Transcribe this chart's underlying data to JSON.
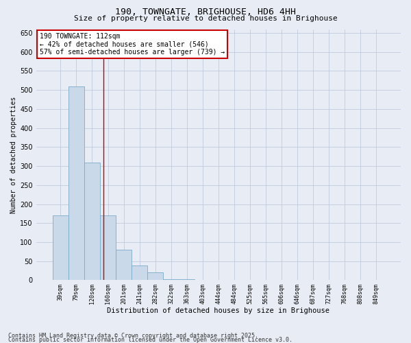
{
  "title1": "190, TOWNGATE, BRIGHOUSE, HD6 4HH",
  "title2": "Size of property relative to detached houses in Brighouse",
  "xlabel": "Distribution of detached houses by size in Brighouse",
  "ylabel": "Number of detached properties",
  "bins": [
    "39sqm",
    "79sqm",
    "120sqm",
    "160sqm",
    "201sqm",
    "241sqm",
    "282sqm",
    "322sqm",
    "363sqm",
    "403sqm",
    "444sqm",
    "484sqm",
    "525sqm",
    "565sqm",
    "606sqm",
    "646sqm",
    "687sqm",
    "727sqm",
    "768sqm",
    "808sqm",
    "849sqm"
  ],
  "values": [
    170,
    510,
    310,
    170,
    80,
    38,
    20,
    2,
    2,
    0,
    0,
    0,
    0,
    0,
    0,
    0,
    0,
    0,
    0,
    0,
    0
  ],
  "bar_color": "#c9d9ea",
  "bar_edge_color": "#7aaac8",
  "grid_color": "#b8c4d8",
  "background_color": "#e8edf5",
  "vline_x": 2.73,
  "vline_color": "#cc0000",
  "annotation_text": "190 TOWNGATE: 112sqm\n← 42% of detached houses are smaller (546)\n57% of semi-detached houses are larger (739) →",
  "annotation_box_color": "#cc0000",
  "ylim": [
    0,
    660
  ],
  "yticks": [
    0,
    50,
    100,
    150,
    200,
    250,
    300,
    350,
    400,
    450,
    500,
    550,
    600,
    650
  ],
  "footnote1": "Contains HM Land Registry data © Crown copyright and database right 2025.",
  "footnote2": "Contains public sector information licensed under the Open Government Licence v3.0."
}
